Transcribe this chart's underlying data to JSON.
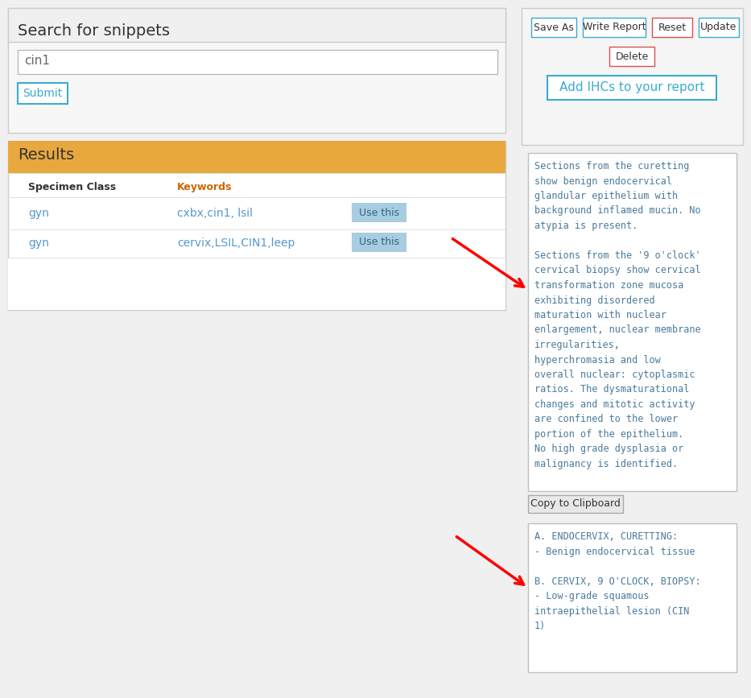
{
  "bg_color": "#f0f0f0",
  "white": "#ffffff",
  "title_search": "Search for snippets",
  "search_text": "cin1",
  "submit_label": "Submit",
  "results_label": "Results",
  "results_bg": "#e8a83e",
  "col1_header": "Specimen Class",
  "col2_header": "Keywords",
  "row1_col1": "gyn",
  "row1_col2": "cxbx,cin1, lsil",
  "row2_col1": "gyn",
  "row2_col2": "cervix,LSIL,CIN1,leep",
  "use_this_bg": "#a8cce0",
  "use_this_text": "Use this",
  "btn_blue_color": "#3aacce",
  "btn_red_color": "#d94f4f",
  "save_as": "Save As",
  "write_report": "Write Report",
  "reset": "Reset",
  "update": "Update",
  "delete": "Delete",
  "add_ihc": "Add IHCs to your report",
  "textarea1_line1": "Sections from the curetting",
  "textarea1_line2": "show benign endocervical",
  "textarea1_line3": "glandular epithelium with",
  "textarea1_line4": "background inflamed mucin. No",
  "textarea1_line5": "atypia is present.",
  "textarea1_line6": "",
  "textarea1_line7": "Sections from the '9 o'clock'",
  "textarea1_line8": "cervical biopsy show cervical",
  "textarea1_line9": "transformation zone mucosa",
  "textarea1_line10": "exhibiting disordered",
  "textarea1_line11": "maturation with nuclear",
  "textarea1_line12": "enlargement, nuclear membrane",
  "textarea1_line13": "irregularities,",
  "textarea1_line14": "hyperchromasia and low",
  "textarea1_line15": "overall nuclear: cytoplasmic",
  "textarea1_line16": "ratios. The dysmaturational",
  "textarea1_line17": "changes and mitotic activity",
  "textarea1_line18": "are confined to the lower",
  "textarea1_line19": "portion of the epithelium.",
  "textarea1_line20": "No high grade dysplasia or",
  "textarea1_line21": "malignancy is identified.",
  "copy_label": "Copy to Clipboard",
  "textarea2_line1": "A. ENDOCERVIX, CURETTING:",
  "textarea2_line2": "- Benign endocervical tissue",
  "textarea2_line3": "",
  "textarea2_line4": "B. CERVIX, 9 O'CLOCK, BIOPSY:",
  "textarea2_line5": "- Low-grade squamous",
  "textarea2_line6": "intraepithelial lesion (CIN",
  "textarea2_line7": "1)",
  "mono_color": "#4a7a9b",
  "text_dark": "#333333",
  "text_link": "#5599cc",
  "panel_border": "#cccccc",
  "separator": "#e0e0e0"
}
